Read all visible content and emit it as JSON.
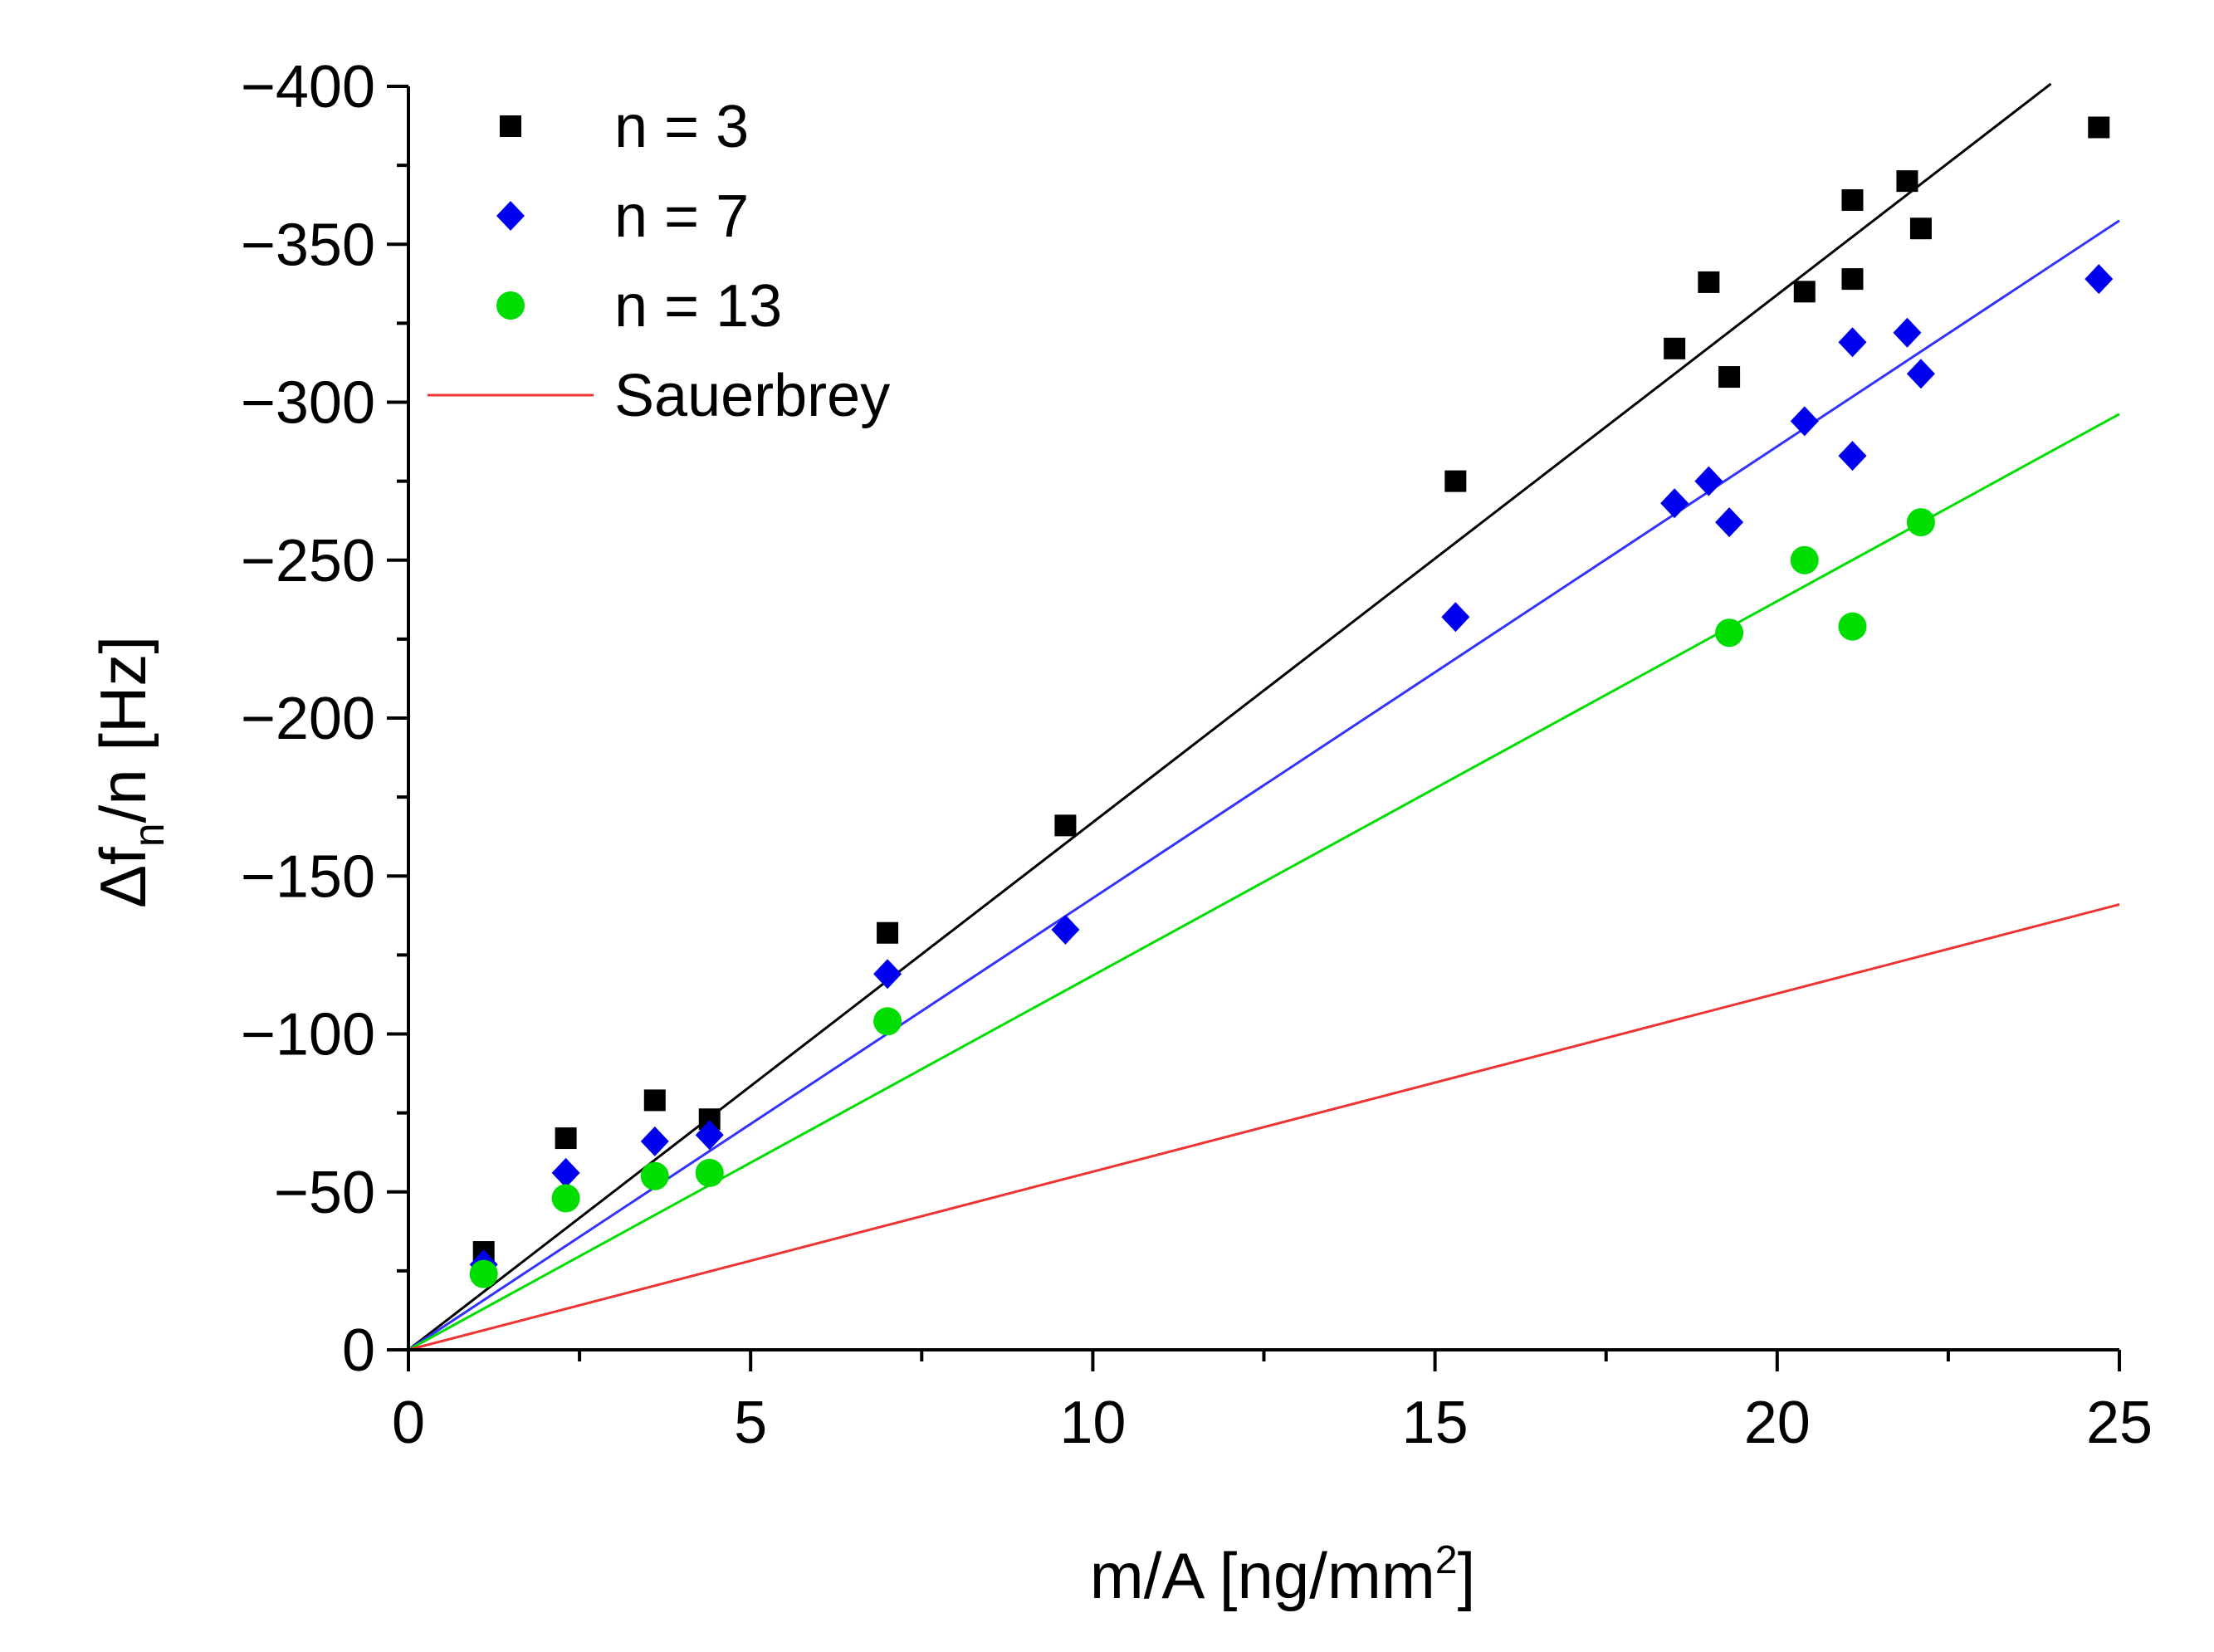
{
  "chart_data": {
    "type": "scatter",
    "title": "",
    "xlabel": "m/A [ng/mm",
    "xlabel_sup": "2",
    "xlabel_end": "]",
    "ylabel_main": "Δf",
    "ylabel_sub": "n",
    "ylabel_rest": "/n [Hz]",
    "xlim": [
      0,
      25
    ],
    "ylim": [
      0,
      -400
    ],
    "x_ticks": [
      0,
      5,
      10,
      15,
      20,
      25
    ],
    "x_tick_labels": [
      "0",
      "5",
      "10",
      "15",
      "20",
      "25"
    ],
    "y_ticks": [
      0,
      -50,
      -100,
      -150,
      -200,
      -250,
      -300,
      -350,
      -400
    ],
    "y_tick_labels": [
      "0",
      "−50",
      "−100",
      "−150",
      "−200",
      "−250",
      "−300",
      "−350",
      "−400"
    ],
    "legend_position": "top-left",
    "series": [
      {
        "name": "n = 3",
        "marker": "square",
        "color": "#000000",
        "points": [
          [
            1.1,
            -31
          ],
          [
            2.3,
            -67
          ],
          [
            3.6,
            -79
          ],
          [
            4.4,
            -73
          ],
          [
            7.0,
            -132
          ],
          [
            9.6,
            -166
          ],
          [
            15.3,
            -275
          ],
          [
            18.5,
            -317
          ],
          [
            19.0,
            -338
          ],
          [
            19.3,
            -308
          ],
          [
            20.4,
            -335
          ],
          [
            21.1,
            -364
          ],
          [
            21.1,
            -339
          ],
          [
            21.9,
            -370
          ],
          [
            22.1,
            -355
          ],
          [
            24.7,
            -387
          ]
        ],
        "fit": {
          "slope": -16.7,
          "x_end": 24.0,
          "color": "#000000"
        }
      },
      {
        "name": "n = 7",
        "marker": "diamond",
        "color": "#0000ee",
        "points": [
          [
            1.1,
            -27
          ],
          [
            2.3,
            -56
          ],
          [
            3.6,
            -66
          ],
          [
            4.4,
            -68
          ],
          [
            7.0,
            -119
          ],
          [
            9.6,
            -133
          ],
          [
            15.3,
            -232
          ],
          [
            18.5,
            -268
          ],
          [
            19.0,
            -275
          ],
          [
            19.3,
            -262
          ],
          [
            20.4,
            -294
          ],
          [
            21.1,
            -319
          ],
          [
            21.1,
            -283
          ],
          [
            21.9,
            -322
          ],
          [
            22.1,
            -309
          ],
          [
            24.7,
            -339
          ]
        ],
        "fit": {
          "slope": -14.3,
          "x_end": 25.0,
          "color": "#3333ff"
        }
      },
      {
        "name": "n = 13",
        "marker": "circle",
        "color": "#00dd00",
        "points": [
          [
            1.1,
            -24
          ],
          [
            2.3,
            -48
          ],
          [
            3.6,
            -55
          ],
          [
            4.4,
            -56
          ],
          [
            7.0,
            -104
          ],
          [
            19.3,
            -227
          ],
          [
            20.4,
            -250
          ],
          [
            21.1,
            -229
          ],
          [
            22.1,
            -262
          ]
        ],
        "fit": {
          "slope": -11.85,
          "x_end": 25.0,
          "color": "#00dd00"
        }
      },
      {
        "name": "Sauerbrey",
        "marker": "line",
        "color": "#ee3333",
        "points": [
          [
            0,
            0
          ],
          [
            25,
            -141
          ]
        ],
        "fit": {
          "slope": -5.64,
          "x_end": 25.0,
          "color": "#ee3333"
        }
      }
    ]
  }
}
